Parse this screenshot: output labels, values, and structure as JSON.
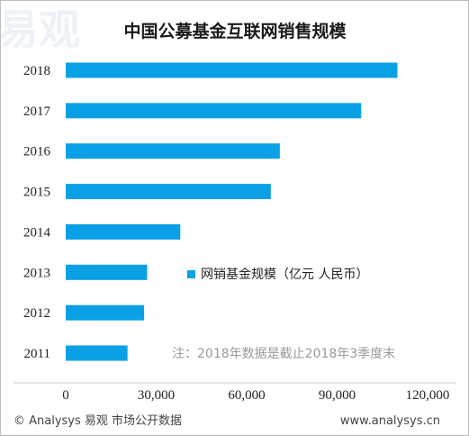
{
  "chart_data": {
    "type": "bar",
    "orientation": "horizontal",
    "title": "中国公募基金互联网销售规模",
    "categories": [
      "2018",
      "2017",
      "2016",
      "2015",
      "2014",
      "2013",
      "2012",
      "2011"
    ],
    "series": [
      {
        "name": "网销基金规模（亿元 人民币）",
        "values": [
          110000,
          98000,
          71000,
          68000,
          38000,
          27000,
          26000,
          20500
        ]
      }
    ],
    "xlim": [
      0,
      120000
    ],
    "xticks": [
      "0",
      "30,000",
      "60,000",
      "90,000",
      "120,000"
    ],
    "xtick_values": [
      0,
      30000,
      60000,
      90000,
      120000
    ],
    "grid": false,
    "legend_position": "right",
    "annotation": "注：2018年数据是截止2018年3季度末",
    "bar_color": "#0aa0e6"
  },
  "watermark": "易观",
  "footer": {
    "left": "© Analysys 易观 市场公开数据",
    "right": "www.analysys.cn"
  }
}
